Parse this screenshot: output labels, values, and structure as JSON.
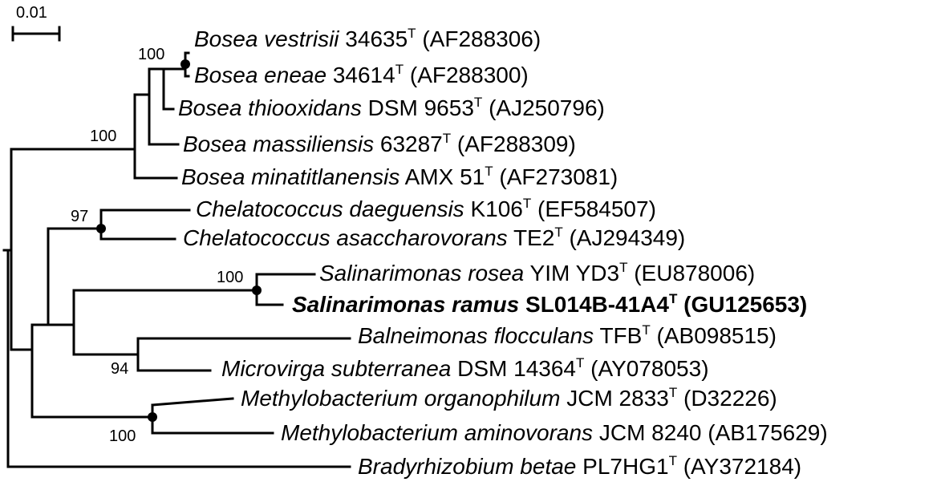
{
  "scale_bar": {
    "label": "0.01"
  },
  "taxa": [
    {
      "id": "vestrisii",
      "species": "Bosea vestrisii",
      "strain": "34635",
      "type_strain": true,
      "accession": "(AF288306)",
      "bold": false
    },
    {
      "id": "eneae",
      "species": "Bosea eneae",
      "strain": "34614",
      "type_strain": true,
      "accession": "(AF288300)",
      "bold": false
    },
    {
      "id": "thiooxidans",
      "species": "Bosea thiooxidans",
      "strain": "DSM 9653",
      "type_strain": true,
      "accession": "(AJ250796)",
      "bold": false
    },
    {
      "id": "massiliensis",
      "species": "Bosea massiliensis",
      "strain": "63287",
      "type_strain": true,
      "accession": "(AF288309)",
      "bold": false
    },
    {
      "id": "minatitlanensis",
      "species": "Bosea minatitlanensis",
      "strain": "AMX 51",
      "type_strain": true,
      "accession": "(AF273081)",
      "bold": false
    },
    {
      "id": "daeguensis",
      "species": "Chelatococcus daeguensis",
      "strain": "K106",
      "type_strain": true,
      "accession": "(EF584507)",
      "bold": false
    },
    {
      "id": "asaccharovorans",
      "species": "Chelatococcus asaccharovorans",
      "strain": "TE2",
      "type_strain": true,
      "accession": "(AJ294349)",
      "bold": false
    },
    {
      "id": "rosea",
      "species": "Salinarimonas rosea",
      "strain": "YIM YD3",
      "type_strain": true,
      "accession": "(EU878006)",
      "bold": false
    },
    {
      "id": "ramus",
      "species": "Salinarimonas ramus",
      "strain": "SL014B-41A4",
      "type_strain": true,
      "accession": "(GU125653)",
      "bold": true
    },
    {
      "id": "flocculans",
      "species": "Balneimonas flocculans",
      "strain": "TFB",
      "type_strain": true,
      "accession": "(AB098515)",
      "bold": false
    },
    {
      "id": "subterranea",
      "species": "Microvirga subterranea",
      "strain": "DSM 14364",
      "type_strain": true,
      "accession": "(AY078053)",
      "bold": false
    },
    {
      "id": "organophilum",
      "species": "Methylobacterium organophilum",
      "strain": "JCM 2833",
      "type_strain": true,
      "accession": "(D32226)",
      "bold": false
    },
    {
      "id": "aminovorans",
      "species": "Methylobacterium aminovorans",
      "strain": "JCM 8240",
      "type_strain": false,
      "accession": "(AB175629)",
      "bold": false
    },
    {
      "id": "betae",
      "species": "Bradyrhizobium betae",
      "strain": "PL7HG1",
      "type_strain": true,
      "accession": "(AY372184)",
      "bold": false
    }
  ],
  "type_marker": "T",
  "bootstrap": [
    {
      "id": "bs-bosea-top",
      "value": "100"
    },
    {
      "id": "bs-bosea",
      "value": "100"
    },
    {
      "id": "bs-chelatococcus",
      "value": "97"
    },
    {
      "id": "bs-salinarimonas",
      "value": "100"
    },
    {
      "id": "bs-microvirga",
      "value": "94"
    },
    {
      "id": "bs-methylobacterium",
      "value": "100"
    }
  ]
}
